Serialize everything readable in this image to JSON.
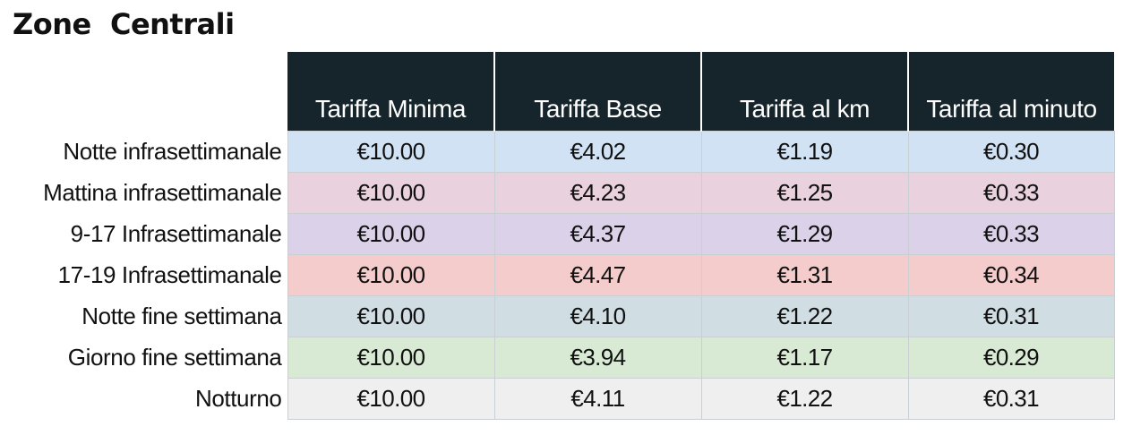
{
  "title": "Zone  Centrali",
  "table": {
    "columns": [
      "Tariffa Minima",
      "Tariffa Base",
      "Tariffa al km",
      "Tariffa al minuto"
    ],
    "rows": [
      {
        "label": "Notte infrasettimanale",
        "values": [
          "€10.00",
          "€4.02",
          "€1.19",
          "€0.30"
        ]
      },
      {
        "label": "Mattina infrasettimanale",
        "values": [
          "€10.00",
          "€4.23",
          "€1.25",
          "€0.33"
        ]
      },
      {
        "label": "9-17 Infrasettimanale",
        "values": [
          "€10.00",
          "€4.37",
          "€1.29",
          "€0.33"
        ]
      },
      {
        "label": "17-19 Infrasettimanale",
        "values": [
          "€10.00",
          "€4.47",
          "€1.31",
          "€0.34"
        ]
      },
      {
        "label": "Notte fine settimana",
        "values": [
          "€10.00",
          "€4.10",
          "€1.22",
          "€0.31"
        ]
      },
      {
        "label": "Giorno fine settimana",
        "values": [
          "€10.00",
          "€3.94",
          "€1.17",
          "€0.29"
        ]
      },
      {
        "label": "Notturno",
        "values": [
          "€10.00",
          "€4.11",
          "€1.22",
          "€0.31"
        ]
      }
    ]
  },
  "colors": {
    "header_bg": "#16242b",
    "row_colors": [
      "#d1e2f4",
      "#ead1de",
      "#dbd2ea",
      "#f3cccb",
      "#d0dde3",
      "#d9ead4",
      "#efefef"
    ]
  }
}
